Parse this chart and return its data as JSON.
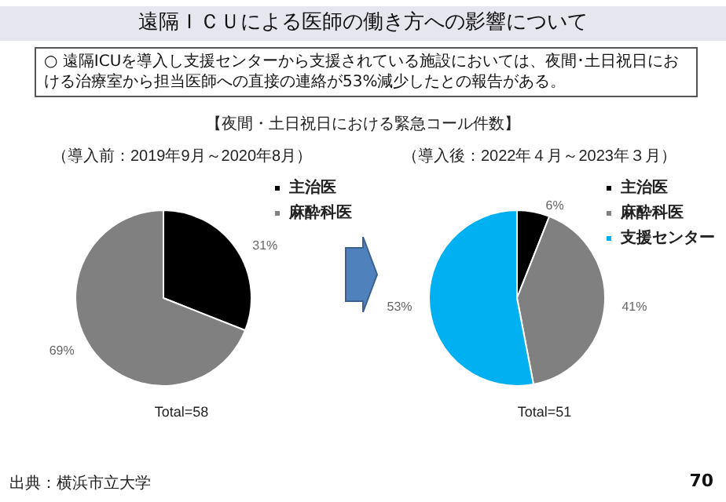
{
  "chart_data": [
    {
      "type": "pie",
      "title": "遠隔ＩＣＵによる医師の働き方への影響について",
      "subtitle": "（導入前：2019年9月～2020年8月）",
      "annotations": [
        "○ 遠隔ICUを導入し支援センターから支援されている施設においては、夜間･土日祝日における治療室から担当医師への直接の連絡が53%減少したとの報告がある。",
        "【夜間・土日祝日における緊急コール件数】",
        "Total=58",
        "出典：横浜市立大学",
        "70"
      ],
      "categories": [
        "主治医",
        "麻酔科医"
      ],
      "values": [
        31,
        69
      ],
      "colors": [
        "#000000",
        "#808080"
      ],
      "value_labels": [
        "31%",
        "69%"
      ],
      "legend": "top right"
    },
    {
      "type": "pie",
      "subtitle": "（導入後：2022年４月～2023年３月）",
      "annotations": [
        "Total=51"
      ],
      "categories": [
        "主治医",
        "麻酔科医",
        "支援センター"
      ],
      "values": [
        6,
        41,
        53
      ],
      "colors": [
        "#000000",
        "#808080",
        "#00b0f0"
      ],
      "value_labels": [
        "6%",
        "41%",
        "53%"
      ],
      "legend": "top right"
    }
  ]
}
